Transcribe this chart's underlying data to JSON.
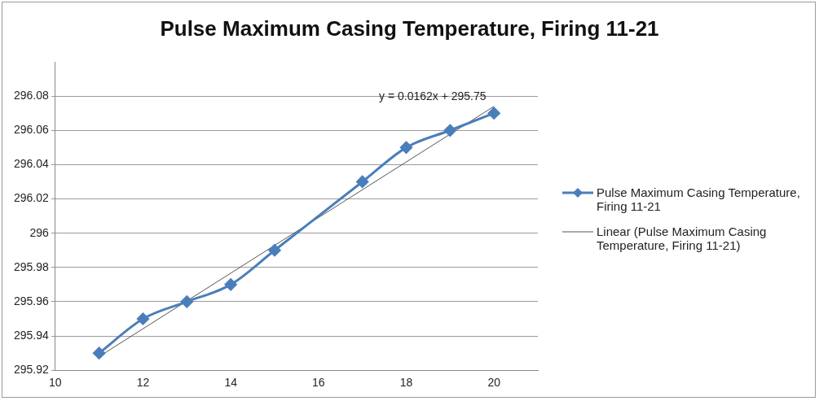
{
  "chart_data": {
    "type": "line",
    "title": "Pulse Maximum Casing Temperature, Firing 11-21",
    "x": [
      11,
      12,
      13,
      14,
      15,
      17,
      18,
      19,
      20
    ],
    "series": [
      {
        "name": "Pulse Maximum Casing Temperature, Firing 11-21",
        "color": "#4a7ebb",
        "values": [
          295.93,
          295.95,
          295.96,
          295.97,
          295.99,
          296.03,
          296.05,
          296.06,
          296.07
        ],
        "marker": "diamond"
      },
      {
        "type": "line",
        "name": "Linear (Pulse Maximum Casing Temperature, Firing 11-21)",
        "color": "#555555",
        "x": [
          11,
          20
        ],
        "values": [
          295.928,
          296.074
        ],
        "marker": "none"
      }
    ],
    "xlim": [
      10,
      21
    ],
    "xticks": [
      10,
      12,
      14,
      16,
      18,
      20
    ],
    "ylim": [
      295.92,
      296.1
    ],
    "yticks": [
      295.92,
      295.94,
      295.96,
      295.98,
      296,
      296.02,
      296.04,
      296.06,
      296.08
    ],
    "grid": "y",
    "legend": "right",
    "annotations": [
      "y = 0.0162x + 295.75"
    ]
  }
}
